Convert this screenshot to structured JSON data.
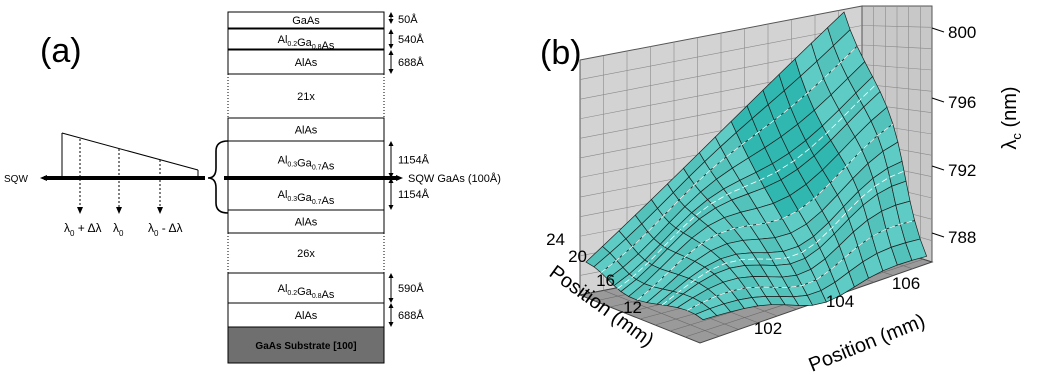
{
  "panel_a": {
    "label": "(a)",
    "sqw_left_label": "SQW",
    "sqw_right_label": "SQW GaAs (100Å)",
    "lambda_labels": [
      {
        "main": "λ",
        "sub": "0",
        "rest": " + Δλ"
      },
      {
        "main": "λ",
        "sub": "0",
        "rest": ""
      },
      {
        "main": "λ",
        "sub": "0",
        "rest": " - Δλ"
      }
    ],
    "layers": [
      {
        "segments": [
          [
            "GaAs",
            ""
          ]
        ],
        "thickness": "50Å"
      },
      {
        "segments": [
          [
            "Al",
            "0.2"
          ],
          [
            "Ga",
            "0.8"
          ],
          [
            "As",
            ""
          ]
        ],
        "thickness": "540Å"
      },
      {
        "segments": [
          [
            "AlAs",
            ""
          ]
        ],
        "thickness": "688Å"
      },
      {
        "segments": [
          [
            "21x",
            ""
          ]
        ],
        "thickness": ""
      },
      {
        "segments": [
          [
            "AlAs",
            ""
          ]
        ],
        "thickness": ""
      },
      {
        "segments": [
          [
            "Al",
            "0.3"
          ],
          [
            "Ga",
            "0.7"
          ],
          [
            "As",
            ""
          ]
        ],
        "thickness": "1154Å"
      },
      {
        "segments": [
          [
            "Al",
            "0.3"
          ],
          [
            "Ga",
            "0.7"
          ],
          [
            "As",
            ""
          ]
        ],
        "thickness": "1154Å"
      },
      {
        "segments": [
          [
            "AlAs",
            ""
          ]
        ],
        "thickness": ""
      },
      {
        "segments": [
          [
            "26x",
            ""
          ]
        ],
        "thickness": ""
      },
      {
        "segments": [
          [
            "Al",
            "0.2"
          ],
          [
            "Ga",
            "0.8"
          ],
          [
            "As",
            ""
          ]
        ],
        "thickness": "590Å"
      },
      {
        "segments": [
          [
            "AlAs",
            ""
          ]
        ],
        "thickness": "688Å"
      },
      {
        "segments": [
          [
            "GaAs Substrate [100]",
            ""
          ]
        ],
        "thickness": ""
      }
    ]
  },
  "panel_b": {
    "label": "(b)",
    "z_axis_label": {
      "main": "λ",
      "sub": "c",
      "rest": " (nm)"
    },
    "z_ticks": [
      "800",
      "796",
      "792",
      "788"
    ],
    "y_axis_label": "Position (mm)",
    "y_ticks": [
      "24",
      "20",
      "16",
      "12"
    ],
    "x_axis_label": "Position (mm)",
    "x_ticks": [
      "102",
      "104",
      "106"
    ],
    "surface_color": "#5ecbc4",
    "surface_highlight": "#2fb7b0"
  }
}
